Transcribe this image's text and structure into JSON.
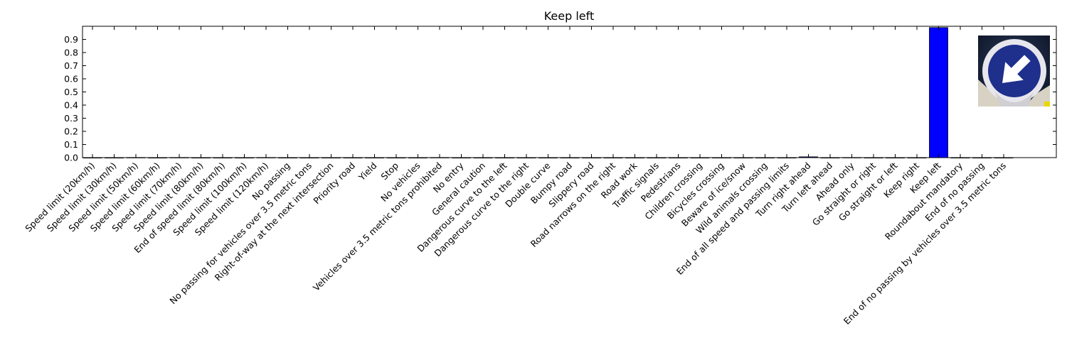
{
  "chart_data": {
    "type": "bar",
    "title": "Keep left",
    "xlabel": "",
    "ylabel": "",
    "ylim": [
      0,
      1.0
    ],
    "yticks": [
      0.0,
      0.1,
      0.2,
      0.3,
      0.4,
      0.5,
      0.6,
      0.7,
      0.8,
      0.9
    ],
    "grid": false,
    "legend": "none",
    "bar_color": "#0000ff",
    "categories": [
      "Speed limit (20km/h)",
      "Speed limit (30km/h)",
      "Speed limit (50km/h)",
      "Speed limit (60km/h)",
      "Speed limit (70km/h)",
      "Speed limit (80km/h)",
      "End of speed limit (80km/h)",
      "Speed limit (100km/h)",
      "Speed limit (120km/h)",
      "No passing",
      "No passing for vehicles over 3.5 metric tons",
      "Right-of-way at the next intersection",
      "Priority road",
      "Yield",
      "Stop",
      "No vehicles",
      "Vehicles over 3.5 metric tons prohibited",
      "No entry",
      "General caution",
      "Dangerous curve to the left",
      "Dangerous curve to the right",
      "Double curve",
      "Bumpy road",
      "Slippery road",
      "Road narrows on the right",
      "Road work",
      "Traffic signals",
      "Pedestrians",
      "Children crossing",
      "Bicycles crossing",
      "Beware of ice/snow",
      "Wild animals crossing",
      "End of all speed and passing limits",
      "Turn right ahead",
      "Turn left ahead",
      "Ahead only",
      "Go straight or right",
      "Go straight or left",
      "Keep right",
      "Keep left",
      "Roundabout mandatory",
      "End of no passing",
      "End of no passing by vehicles over 3.5 metric tons"
    ],
    "values": [
      0,
      0,
      0.001,
      0,
      0.001,
      0,
      0,
      0,
      0.001,
      0,
      0,
      0,
      0,
      0,
      0,
      0,
      0.001,
      0,
      0,
      0,
      0,
      0,
      0,
      0,
      0,
      0,
      0,
      0,
      0,
      0,
      0,
      0,
      0,
      0.006,
      0,
      0.001,
      0,
      0,
      0,
      0.99,
      0,
      0,
      0
    ],
    "inset_image": "keep-left-sign"
  }
}
